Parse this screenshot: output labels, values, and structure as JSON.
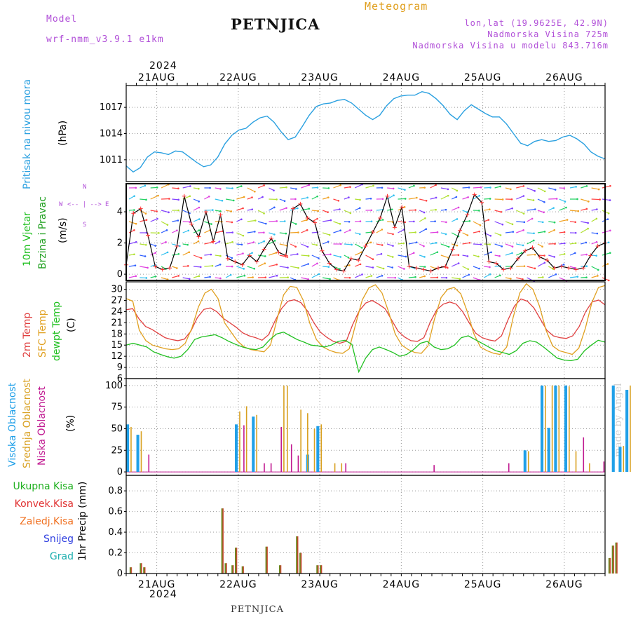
{
  "header": {
    "model_label": "Model",
    "model_name": "wrf-nmm_v3.9.1 e1km",
    "title": "PETNJICA",
    "chart_kind": "Meteogram",
    "lonlat": "lon,lat (19.9625E, 42.9N)",
    "elevation": "Nadmorska Visina 725m",
    "model_elevation": "Nadmorska Visina u modelu 843.716m",
    "footer_station": "PETNJICA",
    "watermark": "made by Angel"
  },
  "colors": {
    "pressure": "#2aa0e0",
    "wind_speed": "#000000",
    "wind_marker": "#ff3030",
    "temp_2m": "#e04040",
    "temp_sfc": "#e0a020",
    "dewpoint": "#20c020",
    "cloud_high": "#20a0e8",
    "cloud_mid": "#d8a020",
    "cloud_low": "#c01890",
    "precip_total": "#20b020",
    "precip_conv": "#e03030",
    "precip_frozen": "#f07020",
    "snow": "#3040e0",
    "hail": "#20b0b0",
    "wind_label": "#20c020",
    "wind_label2": "#20a020",
    "compass": "#b150d8"
  },
  "chart_data": {
    "type": "meteogram",
    "x_start": "2024-08-20 15:00",
    "x_end": "2024-08-26 12:00",
    "step_hours": 3,
    "year_label": "2024",
    "date_ticks": [
      "21AUG",
      "22AUG",
      "23AUG",
      "24AUG",
      "25AUG",
      "26AUG"
    ],
    "panels": [
      {
        "id": "pressure",
        "labels": [
          "Pritisak na nivou mora",
          "(hPa)"
        ],
        "ylim": [
          1008.5,
          1019.5
        ],
        "yticks": [
          1011,
          1014,
          1017
        ],
        "series": [
          {
            "key": "pressure",
            "values": [
              1010.3,
              1009.6,
              1010.1,
              1011.3,
              1011.9,
              1011.8,
              1011.6,
              1012.0,
              1011.9,
              1011.3,
              1010.7,
              1010.2,
              1010.4,
              1011.3,
              1012.8,
              1013.8,
              1014.4,
              1014.6,
              1015.3,
              1015.8,
              1016.0,
              1015.3,
              1014.2,
              1013.3,
              1013.6,
              1014.8,
              1016.1,
              1017.1,
              1017.4,
              1017.5,
              1017.8,
              1017.9,
              1017.5,
              1016.8,
              1016.1,
              1015.6,
              1016.1,
              1017.2,
              1018.0,
              1018.3,
              1018.4,
              1018.4,
              1018.8,
              1018.6,
              1018.0,
              1017.2,
              1016.2,
              1015.6,
              1016.6,
              1017.3,
              1016.8,
              1016.3,
              1015.9,
              1015.9,
              1015.1,
              1014.0,
              1012.9,
              1012.6,
              1013.1,
              1013.3,
              1013.1,
              1013.2,
              1013.6,
              1013.8,
              1013.4,
              1012.8,
              1011.9,
              1011.4,
              1011.1,
              1011.0,
              1010.9,
              1010.9,
              1010.9,
              1010.9,
              1010.9,
              1010.9,
              1010.9,
              1010.9,
              1010.9,
              1010.9,
              1010.9,
              1010.9,
              1010.9,
              1010.9,
              1010.9,
              1010.9,
              1010.9,
              1010.9,
              1010.9,
              1010.9,
              1010.9,
              1010.9,
              1010.9,
              1010.9,
              1010.9,
              1010.9,
              1010.9,
              1010.9,
              1010.9,
              1010.9,
              1010.9,
              1010.9,
              1010.9,
              1010.9,
              1010.9,
              1010.9,
              1010.9,
              1010.9,
              1010.9,
              1010.9,
              1010.9,
              1010.9,
              1010.9,
              1010.9,
              1010.9,
              1010.9,
              1010.9,
              1010.9,
              1010.9,
              1010.9,
              1010.9,
              1010.9,
              1010.9,
              1010.9,
              1010.9,
              1010.9,
              1010.9,
              1010.9
            ]
          }
        ]
      },
      {
        "id": "wind",
        "labels": [
          "10m Vjetar",
          "Brzina i Pravac",
          "(m/s)"
        ],
        "compass": [
          "W",
          "E",
          "N",
          "S"
        ],
        "ylim": [
          -0.4,
          5.8
        ],
        "yticks": [
          0,
          2,
          4
        ],
        "series": [
          {
            "key": "wind_speed",
            "values": [
              0.6,
              3.9,
              4.2,
              2.5,
              0.5,
              0.3,
              0.4,
              1.8,
              5.0,
              3.2,
              2.4,
              4.0,
              2.1,
              3.8,
              1.0,
              0.8,
              0.6,
              1.2,
              0.8,
              1.6,
              2.3,
              1.4,
              1.2,
              4.2,
              4.5,
              3.6,
              3.3,
              1.5,
              0.7,
              0.3,
              0.2,
              1.0,
              0.9,
              1.8,
              2.7,
              3.6,
              5.0,
              3.0,
              4.3,
              0.5,
              0.4,
              0.3,
              0.2,
              0.4,
              0.5,
              1.6,
              2.8,
              3.8,
              5.1,
              4.6,
              0.8,
              0.7,
              0.3,
              0.4,
              1.0,
              1.5,
              1.7,
              1.1,
              0.9,
              0.4,
              0.5,
              0.4,
              0.3,
              0.4,
              1.2,
              1.8,
              2.0
            ]
          }
        ]
      },
      {
        "id": "temperature",
        "labels": [
          "2m Temp",
          "SFC Temp",
          "dewpt Temp",
          "(C)"
        ],
        "ylim": [
          6,
          32
        ],
        "yticks": [
          6,
          9,
          12,
          15,
          18,
          21,
          24,
          27,
          30
        ],
        "series": [
          {
            "key": "temp_2m",
            "values": [
              24.5,
              24.8,
              22.0,
              20.0,
              19.2,
              18.1,
              17.0,
              16.5,
              16.2,
              16.6,
              18.8,
              22.4,
              24.6,
              25.0,
              24.0,
              22.2,
              21.0,
              19.8,
              18.3,
              17.5,
              17.0,
              16.3,
              17.8,
              21.5,
              24.8,
              26.8,
              27.2,
              26.4,
              24.2,
              21.0,
              18.5,
              17.1,
              16.0,
              15.5,
              16.0,
              20.5,
              24.2,
              26.3,
              27.0,
              26.0,
              24.8,
              21.8,
              18.8,
              17.2,
              16.2,
              16.0,
              17.0,
              21.2,
              24.5,
              26.0,
              26.6,
              26.0,
              24.0,
              21.0,
              18.2,
              17.0,
              16.4,
              16.1,
              17.5,
              21.8,
              25.5,
              27.4,
              26.8,
              25.0,
              22.0,
              19.0,
              17.5,
              17.0,
              16.8,
              17.5,
              20.0,
              24.0,
              26.6,
              27.1,
              25.8
            ]
          },
          {
            "key": "temp_sfc",
            "values": [
              27.5,
              26.8,
              19.0,
              16.2,
              15.0,
              14.5,
              14.0,
              13.8,
              14.0,
              15.5,
              19.5,
              25.2,
              29.0,
              30.0,
              27.5,
              21.0,
              18.5,
              16.0,
              14.5,
              13.8,
              13.5,
              13.2,
              15.0,
              22.0,
              28.5,
              30.8,
              30.5,
              27.0,
              20.8,
              16.5,
              14.5,
              13.6,
              13.0,
              12.8,
              14.0,
              20.8,
              27.2,
              30.4,
              31.2,
              29.0,
              24.0,
              18.0,
              15.0,
              13.8,
              13.0,
              12.8,
              14.8,
              22.0,
              27.8,
              30.0,
              30.5,
              28.8,
              24.0,
              18.0,
              14.5,
              13.5,
              12.8,
              12.5,
              14.5,
              22.5,
              29.0,
              31.5,
              30.0,
              25.5,
              19.0,
              14.8,
              13.5,
              13.0,
              12.5,
              14.2,
              19.5,
              26.5,
              30.5,
              31.0
            ]
          },
          {
            "key": "dewpoint",
            "values": [
              15.0,
              15.5,
              15.0,
              14.5,
              13.2,
              12.5,
              11.9,
              11.5,
              12.0,
              13.8,
              16.5,
              17.2,
              17.5,
              17.8,
              17.0,
              16.0,
              15.2,
              14.5,
              14.0,
              13.8,
              14.5,
              16.5,
              18.0,
              18.5,
              17.5,
              16.5,
              15.8,
              15.0,
              14.8,
              14.5,
              15.0,
              16.0,
              16.3,
              15.2,
              7.8,
              11.5,
              13.8,
              14.5,
              13.8,
              13.0,
              12.0,
              12.5,
              13.8,
              15.5,
              16.0,
              14.5,
              13.8,
              14.0,
              15.0,
              17.0,
              17.5,
              16.5,
              15.5,
              14.5,
              13.5,
              13.0,
              12.5,
              13.5,
              15.5,
              16.2,
              15.8,
              14.5,
              13.0,
              11.5,
              11.0,
              10.8,
              11.2,
              13.5,
              15.0,
              16.3,
              15.8
            ]
          }
        ]
      },
      {
        "id": "cloud",
        "labels": [
          "Visoka Oblacnost",
          "Srednja Oblacnost",
          "Niska Oblacnost",
          "(%)"
        ],
        "ylim": [
          -4,
          108
        ],
        "yticks": [
          0,
          25,
          50,
          75,
          100
        ],
        "series": [
          {
            "key": "cloud_high",
            "bars": [
              [
                0,
                55
              ],
              [
                3,
                43
              ],
              [
                32,
                55
              ],
              [
                37,
                64
              ],
              [
                53,
                20
              ],
              [
                56,
                53
              ],
              [
                117,
                25
              ],
              [
                122,
                100
              ],
              [
                124,
                51
              ],
              [
                126,
                100
              ],
              [
                129,
                100
              ],
              [
                143,
                100
              ],
              [
                145,
                29
              ],
              [
                147,
                95
              ],
              [
                149,
                100
              ],
              [
                151,
                100
              ],
              [
                154,
                82
              ]
            ]
          },
          {
            "key": "cloud_mid",
            "bars": [
              [
                1,
                52
              ],
              [
                4,
                47
              ],
              [
                33,
                70
              ],
              [
                35,
                76
              ],
              [
                38,
                66
              ],
              [
                46,
                100
              ],
              [
                47,
                100
              ],
              [
                51,
                72
              ],
              [
                53,
                68
              ],
              [
                55,
                50
              ],
              [
                57,
                55
              ],
              [
                61,
                10
              ],
              [
                63,
                10
              ],
              [
                118,
                24
              ],
              [
                123,
                100
              ],
              [
                125,
                100
              ],
              [
                127,
                100
              ],
              [
                130,
                99
              ],
              [
                132,
                24
              ],
              [
                136,
                10
              ],
              [
                146,
                30
              ],
              [
                148,
                100
              ],
              [
                150,
                100
              ],
              [
                152,
                100
              ],
              [
                165,
                10
              ]
            ]
          },
          {
            "key": "cloud_low",
            "bars": [
              [
                6,
                20
              ],
              [
                34,
                54
              ],
              [
                40,
                10
              ],
              [
                42,
                10
              ],
              [
                45,
                52
              ],
              [
                48,
                32
              ],
              [
                50,
                19
              ],
              [
                64,
                10
              ],
              [
                90,
                8
              ],
              [
                112,
                10
              ],
              [
                134,
                40
              ],
              [
                140,
                12
              ],
              [
                150,
                64
              ]
            ]
          }
        ]
      },
      {
        "id": "precip",
        "labels": [
          "Ukupna Kisa",
          "Konvek.Kisa",
          "Zaledj.Kisa",
          "Snijeg",
          "Grad",
          "1hr Precip (mm)"
        ],
        "ylim": [
          0,
          0.95
        ],
        "yticks": [
          0,
          0.2,
          0.4,
          0.6,
          0.8
        ],
        "series": [
          {
            "key": "precip_total",
            "bars": [
              [
                1,
                0.06
              ],
              [
                4,
                0.1
              ],
              [
                5,
                0.06
              ],
              [
                28,
                0.63
              ],
              [
                29,
                0.1
              ],
              [
                31,
                0.08
              ],
              [
                32,
                0.25
              ],
              [
                34,
                0.07
              ],
              [
                41,
                0.26
              ],
              [
                45,
                0.08
              ],
              [
                50,
                0.36
              ],
              [
                51,
                0.2
              ],
              [
                56,
                0.08
              ],
              [
                57,
                0.08
              ],
              [
                142,
                0.15
              ],
              [
                143,
                0.27
              ],
              [
                144,
                0.3
              ]
            ]
          }
        ]
      }
    ]
  }
}
